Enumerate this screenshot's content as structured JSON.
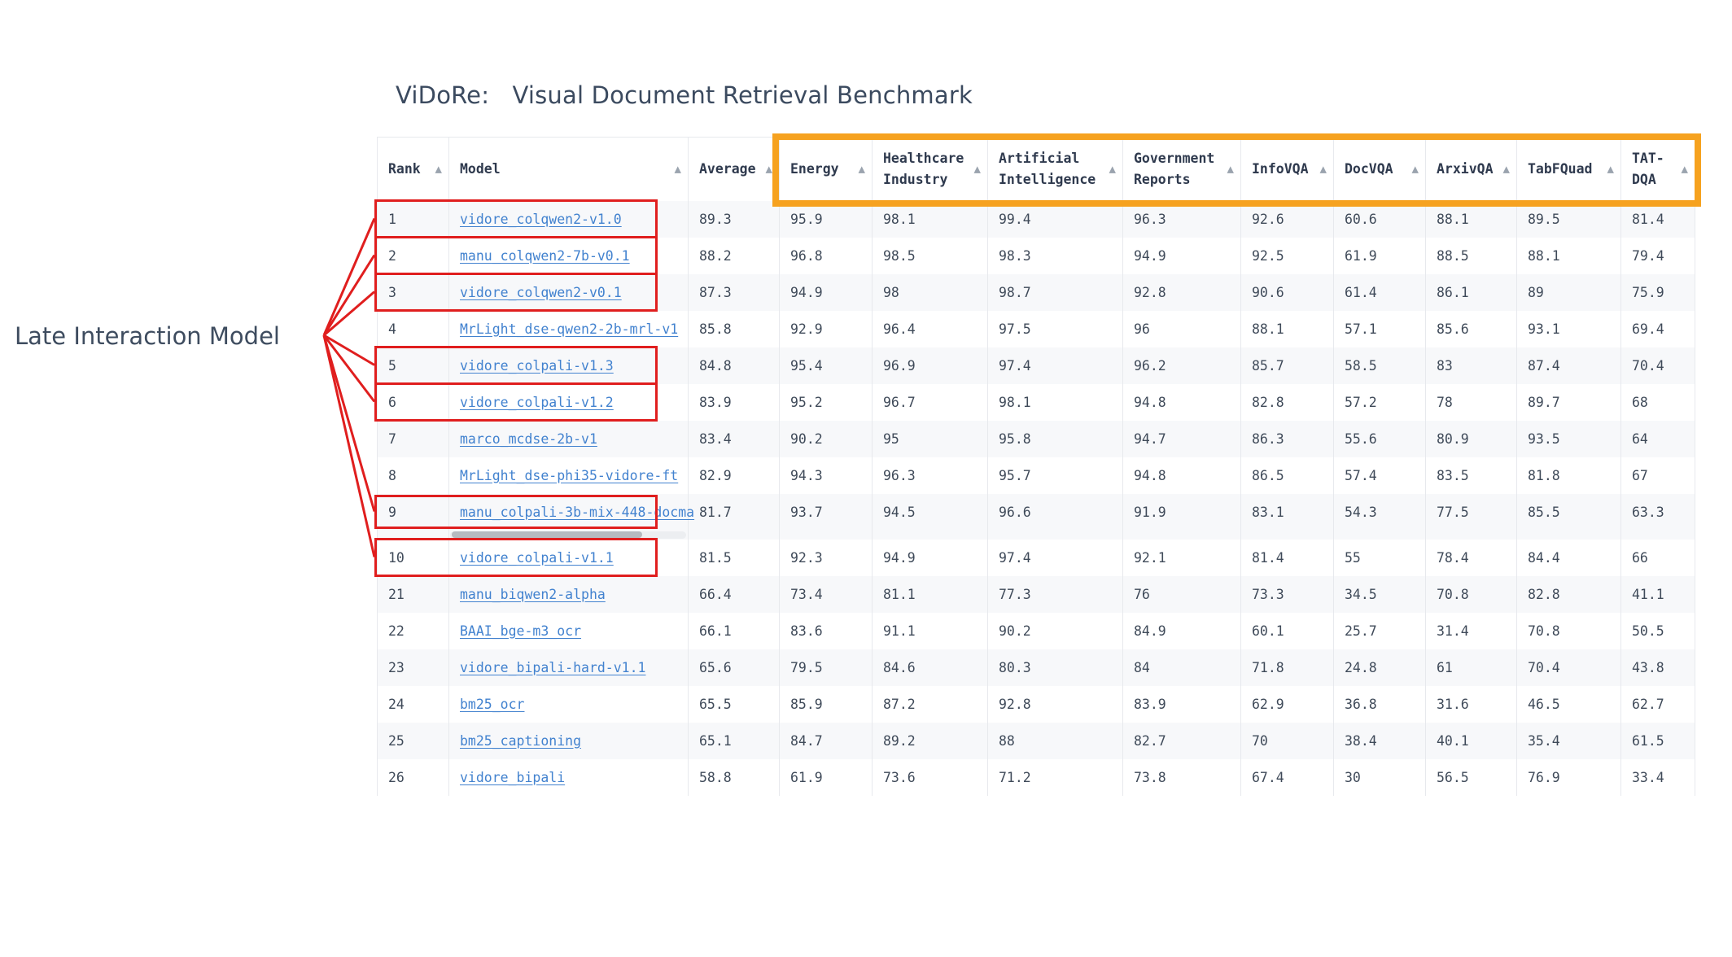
{
  "page": {
    "title": "ViDoRe:   Visual Document Retrieval Benchmark"
  },
  "annotation": {
    "label": "Late Interaction Model",
    "line_color": "#e01e1e"
  },
  "highlight": {
    "row_box_color": "#e01e1e",
    "column_group_box_color": "#f6a21f",
    "column_group_span": [
      "Energy",
      "TAT-DQA"
    ]
  },
  "table": {
    "sort_icon": "▲",
    "columns": [
      {
        "label": "Rank",
        "slug": "rank"
      },
      {
        "label": "Model",
        "slug": "model"
      },
      {
        "label": "Average",
        "slug": "average"
      },
      {
        "label": "Energy",
        "slug": "energy"
      },
      {
        "label": "Healthcare Industry",
        "slug": "healthcare-industry"
      },
      {
        "label": "Artificial Intelligence",
        "slug": "artificial-intelligence"
      },
      {
        "label": "Government Reports",
        "slug": "government-reports"
      },
      {
        "label": "InfoVQA",
        "slug": "infovqa"
      },
      {
        "label": "DocVQA",
        "slug": "docvqa"
      },
      {
        "label": "ArxivQA",
        "slug": "arxivqa"
      },
      {
        "label": "TabFQuad",
        "slug": "tabfquad"
      },
      {
        "label": "TAT-DQA",
        "slug": "tat-dqa"
      }
    ],
    "rows": [
      {
        "rank": "1",
        "model": "vidore_colqwen2-v1.0",
        "values": [
          "89.3",
          "95.9",
          "98.1",
          "99.4",
          "96.3",
          "92.6",
          "60.6",
          "88.1",
          "89.5",
          "81.4"
        ],
        "late_interaction": true,
        "has_scrollbar": false
      },
      {
        "rank": "2",
        "model": "manu_colqwen2-7b-v0.1",
        "values": [
          "88.2",
          "96.8",
          "98.5",
          "98.3",
          "94.9",
          "92.5",
          "61.9",
          "88.5",
          "88.1",
          "79.4"
        ],
        "late_interaction": true,
        "has_scrollbar": false
      },
      {
        "rank": "3",
        "model": "vidore_colqwen2-v0.1",
        "values": [
          "87.3",
          "94.9",
          "98",
          "98.7",
          "92.8",
          "90.6",
          "61.4",
          "86.1",
          "89",
          "75.9"
        ],
        "late_interaction": true,
        "has_scrollbar": false
      },
      {
        "rank": "4",
        "model": "MrLight_dse-qwen2-2b-mrl-v1",
        "values": [
          "85.8",
          "92.9",
          "96.4",
          "97.5",
          "96",
          "88.1",
          "57.1",
          "85.6",
          "93.1",
          "69.4"
        ],
        "late_interaction": false,
        "has_scrollbar": false
      },
      {
        "rank": "5",
        "model": "vidore_colpali-v1.3",
        "values": [
          "84.8",
          "95.4",
          "96.9",
          "97.4",
          "96.2",
          "85.7",
          "58.5",
          "83",
          "87.4",
          "70.4"
        ],
        "late_interaction": true,
        "has_scrollbar": false
      },
      {
        "rank": "6",
        "model": "vidore_colpali-v1.2",
        "values": [
          "83.9",
          "95.2",
          "96.7",
          "98.1",
          "94.8",
          "82.8",
          "57.2",
          "78",
          "89.7",
          "68"
        ],
        "late_interaction": true,
        "has_scrollbar": false
      },
      {
        "rank": "7",
        "model": "marco_mcdse-2b-v1",
        "values": [
          "83.4",
          "90.2",
          "95",
          "95.8",
          "94.7",
          "86.3",
          "55.6",
          "80.9",
          "93.5",
          "64"
        ],
        "late_interaction": false,
        "has_scrollbar": false
      },
      {
        "rank": "8",
        "model": "MrLight_dse-phi35-vidore-ft",
        "values": [
          "82.9",
          "94.3",
          "96.3",
          "95.7",
          "94.8",
          "86.5",
          "57.4",
          "83.5",
          "81.8",
          "67"
        ],
        "late_interaction": false,
        "has_scrollbar": false
      },
      {
        "rank": "9",
        "model": "manu_colpali-3b-mix-448-docma",
        "values": [
          "81.7",
          "93.7",
          "94.5",
          "96.6",
          "91.9",
          "83.1",
          "54.3",
          "77.5",
          "85.5",
          "63.3"
        ],
        "late_interaction": true,
        "has_scrollbar": true
      },
      {
        "rank": "10",
        "model": "vidore_colpali-v1.1",
        "values": [
          "81.5",
          "92.3",
          "94.9",
          "97.4",
          "92.1",
          "81.4",
          "55",
          "78.4",
          "84.4",
          "66"
        ],
        "late_interaction": true,
        "has_scrollbar": false
      },
      {
        "rank": "21",
        "model": "manu_biqwen2-alpha",
        "values": [
          "66.4",
          "73.4",
          "81.1",
          "77.3",
          "76",
          "73.3",
          "34.5",
          "70.8",
          "82.8",
          "41.1"
        ],
        "late_interaction": false,
        "has_scrollbar": false
      },
      {
        "rank": "22",
        "model": "BAAI_bge-m3_ocr",
        "values": [
          "66.1",
          "83.6",
          "91.1",
          "90.2",
          "84.9",
          "60.1",
          "25.7",
          "31.4",
          "70.8",
          "50.5"
        ],
        "late_interaction": false,
        "has_scrollbar": false
      },
      {
        "rank": "23",
        "model": "vidore_bipali-hard-v1.1",
        "values": [
          "65.6",
          "79.5",
          "84.6",
          "80.3",
          "84",
          "71.8",
          "24.8",
          "61",
          "70.4",
          "43.8"
        ],
        "late_interaction": false,
        "has_scrollbar": false
      },
      {
        "rank": "24",
        "model": "bm25_ocr",
        "values": [
          "65.5",
          "85.9",
          "87.2",
          "92.8",
          "83.9",
          "62.9",
          "36.8",
          "31.6",
          "46.5",
          "62.7"
        ],
        "late_interaction": false,
        "has_scrollbar": false
      },
      {
        "rank": "25",
        "model": "bm25_captioning",
        "values": [
          "65.1",
          "84.7",
          "89.2",
          "88",
          "82.7",
          "70",
          "38.4",
          "40.1",
          "35.4",
          "61.5"
        ],
        "late_interaction": false,
        "has_scrollbar": false
      },
      {
        "rank": "26",
        "model": "vidore_bipali",
        "values": [
          "58.8",
          "61.9",
          "73.6",
          "71.2",
          "73.8",
          "67.4",
          "30",
          "56.5",
          "76.9",
          "33.4"
        ],
        "late_interaction": false,
        "has_scrollbar": false
      }
    ]
  }
}
